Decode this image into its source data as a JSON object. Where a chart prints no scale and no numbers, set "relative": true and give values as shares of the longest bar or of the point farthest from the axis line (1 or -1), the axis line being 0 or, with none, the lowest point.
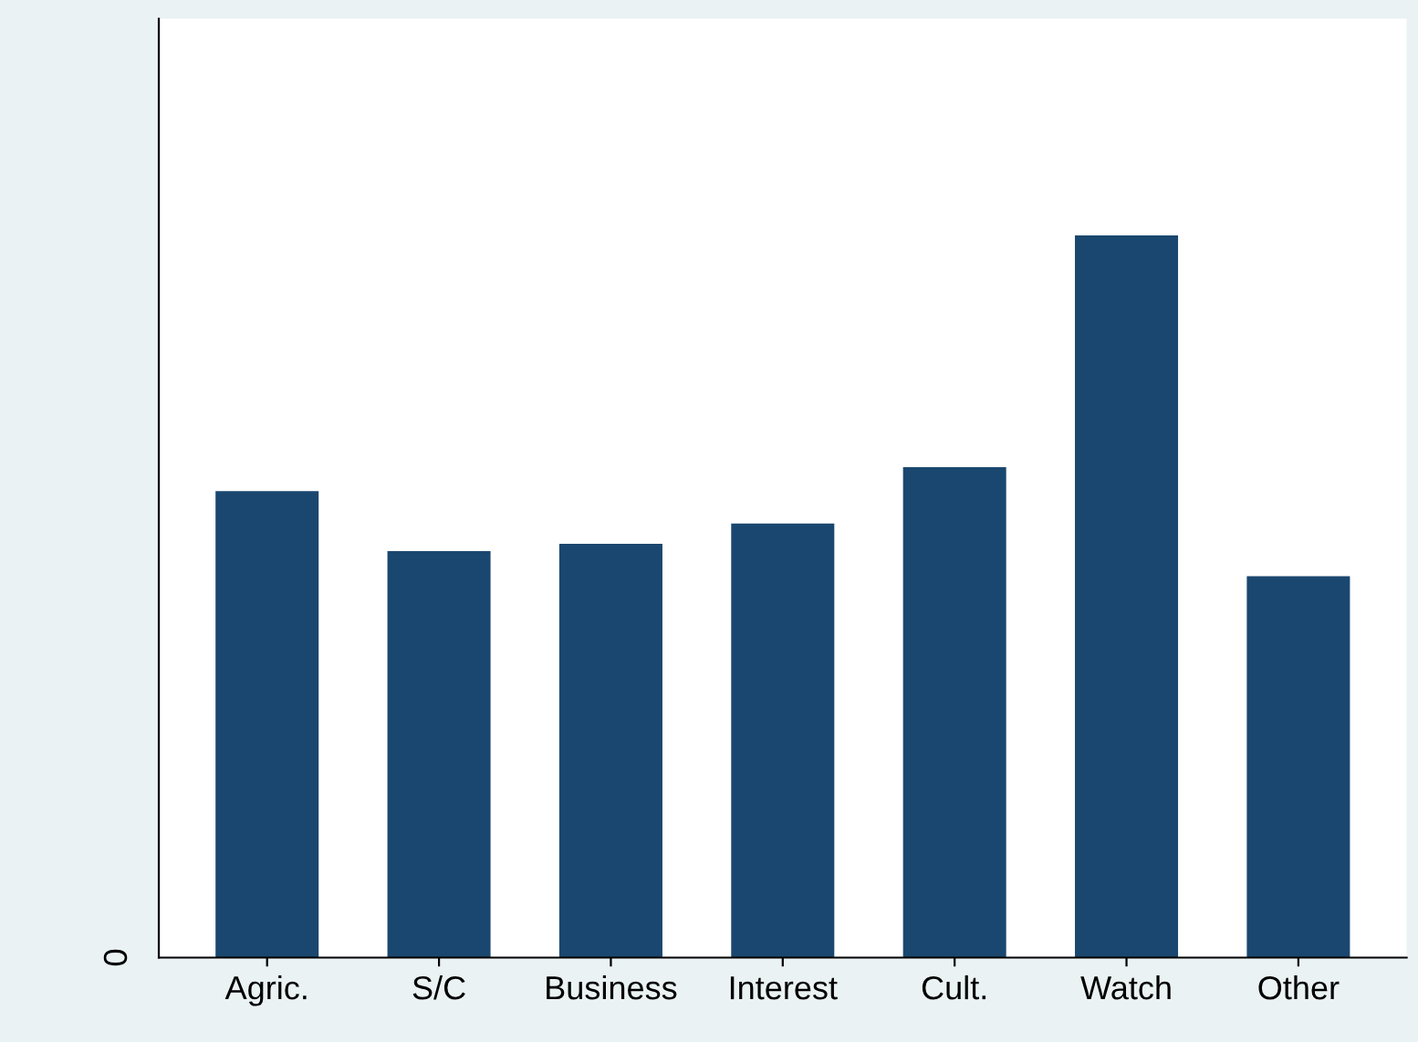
{
  "chart_data": {
    "type": "bar",
    "relative": true,
    "categories": [
      "Agric.",
      "S/C",
      "Business",
      "Interest",
      "Cult.",
      "Watch",
      "Other"
    ],
    "values": [
      0.646,
      0.563,
      0.573,
      0.601,
      0.679,
      1,
      0.528
    ],
    "color": "#1a476f",
    "annotations": [
      "0"
    ]
  }
}
